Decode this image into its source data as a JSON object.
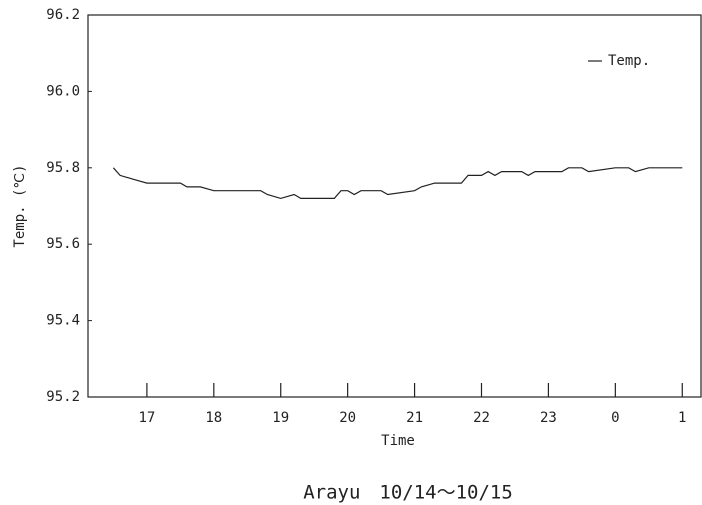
{
  "chart_data": {
    "type": "line",
    "y_label": "Temp. (℃)",
    "x_label": "Time",
    "caption": "Arayu　10/14〜10/15",
    "legend": "top-right",
    "grid": false,
    "x": [
      16.5,
      16.6,
      16.8,
      17,
      17.2,
      17.5,
      17.6,
      17.8,
      18,
      18.5,
      18.7,
      18.8,
      19,
      19.2,
      19.3,
      19.8,
      19.9,
      20,
      20.1,
      20.2,
      20.5,
      20.6,
      21,
      21.1,
      21.3,
      21.7,
      21.8,
      22,
      22.1,
      22.2,
      22.3,
      22.6,
      22.7,
      22.8,
      23.2,
      23.3,
      23.5,
      23.6,
      24,
      24.2,
      24.3,
      24.5,
      25
    ],
    "series": [
      {
        "name": "Temp.",
        "color": "#222222",
        "values": [
          95.8,
          95.78,
          95.77,
          95.76,
          95.76,
          95.76,
          95.75,
          95.75,
          95.74,
          95.74,
          95.74,
          95.73,
          95.72,
          95.73,
          95.72,
          95.72,
          95.74,
          95.74,
          95.73,
          95.74,
          95.74,
          95.73,
          95.74,
          95.75,
          95.76,
          95.76,
          95.78,
          95.78,
          95.79,
          95.78,
          95.79,
          95.79,
          95.78,
          95.79,
          95.79,
          95.8,
          95.8,
          95.79,
          95.8,
          95.8,
          95.79,
          95.8,
          95.8
        ]
      }
    ],
    "xlim": [
      16.12,
      25.28
    ],
    "xticks": [
      17,
      18,
      19,
      20,
      21,
      22,
      23,
      {
        "value": 24,
        "label": "0"
      },
      {
        "value": 25,
        "label": "1"
      }
    ],
    "ylim": [
      95.2,
      96.2
    ],
    "yticks": [
      {
        "value": 95.2,
        "label": "95.2"
      },
      {
        "value": 95.4,
        "label": "95.4"
      },
      {
        "value": 95.6,
        "label": "95.6"
      },
      {
        "value": 95.8,
        "label": "95.8"
      },
      {
        "value": 96.0,
        "label": "96.0"
      },
      {
        "value": 96.2,
        "label": "96.2"
      }
    ]
  }
}
